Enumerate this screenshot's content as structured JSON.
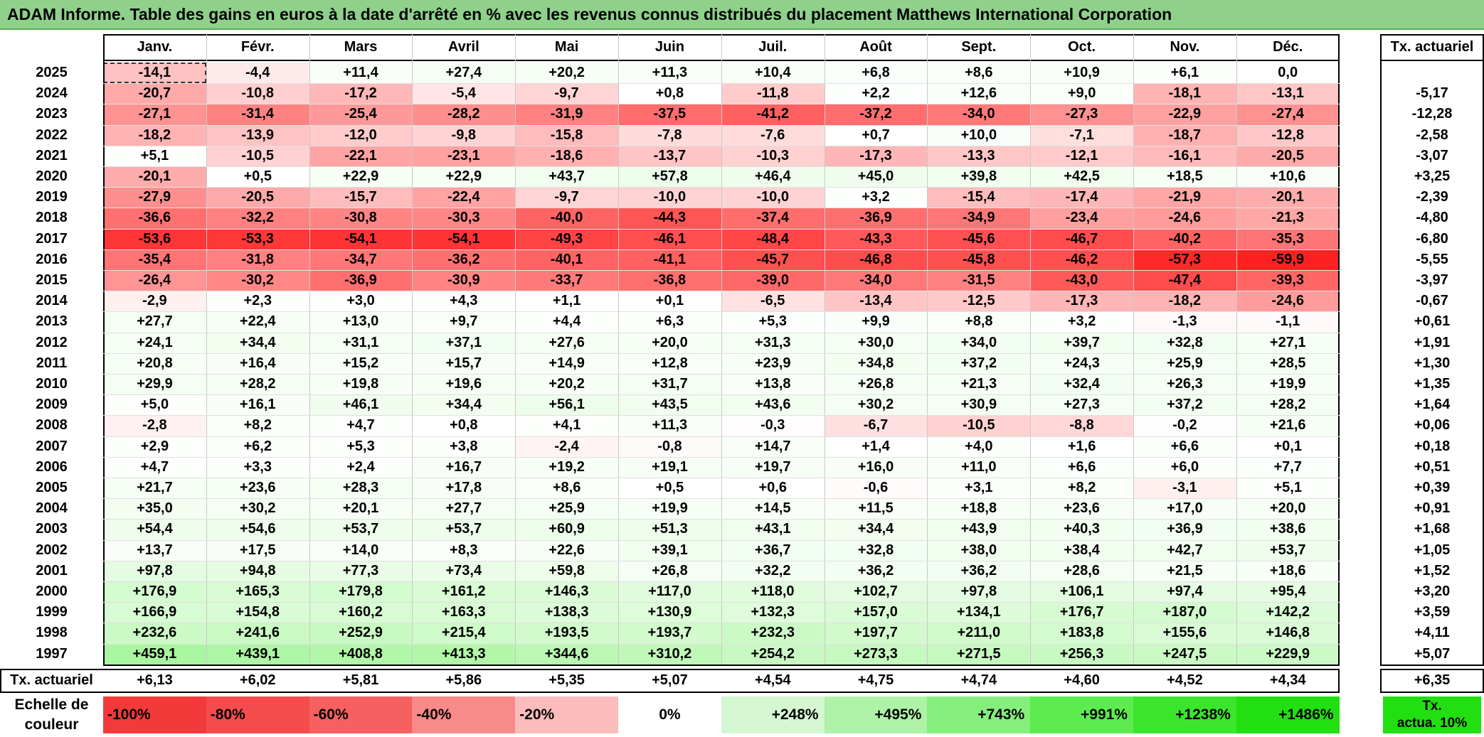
{
  "title": "ADAM Informe. Table des gains en euros à la date d'arrêté en % avec les revenus connus distribués du placement Matthews International Corporation",
  "months": [
    "Janv.",
    "Févr.",
    "Mars",
    "Avril",
    "Mai",
    "Juin",
    "Juil.",
    "Août",
    "Sept.",
    "Oct.",
    "Nov.",
    "Déc."
  ],
  "rate_header": "Tx. actuariel",
  "rows": [
    {
      "year": "2025",
      "values": [
        "-14,1",
        "-4,4",
        "+11,4",
        "+27,4",
        "+20,2",
        "+11,3",
        "+10,4",
        "+6,8",
        "+8,6",
        "+10,9",
        "+6,1",
        "0,0"
      ],
      "rate": ""
    },
    {
      "year": "2024",
      "values": [
        "-20,7",
        "-10,8",
        "-17,2",
        "-5,4",
        "-9,7",
        "+0,8",
        "-11,8",
        "+2,2",
        "+12,6",
        "+9,0",
        "-18,1",
        "-13,1"
      ],
      "rate": "-5,17"
    },
    {
      "year": "2023",
      "values": [
        "-27,1",
        "-31,4",
        "-25,4",
        "-28,2",
        "-31,9",
        "-37,5",
        "-41,2",
        "-37,2",
        "-34,0",
        "-27,3",
        "-22,9",
        "-27,4"
      ],
      "rate": "-12,28"
    },
    {
      "year": "2022",
      "values": [
        "-18,2",
        "-13,9",
        "-12,0",
        "-9,8",
        "-15,8",
        "-7,8",
        "-7,6",
        "+0,7",
        "+10,0",
        "-7,1",
        "-18,7",
        "-12,8"
      ],
      "rate": "-2,58"
    },
    {
      "year": "2021",
      "values": [
        "+5,1",
        "-10,5",
        "-22,1",
        "-23,1",
        "-18,6",
        "-13,7",
        "-10,3",
        "-17,3",
        "-13,3",
        "-12,1",
        "-16,1",
        "-20,5"
      ],
      "rate": "-3,07"
    },
    {
      "year": "2020",
      "values": [
        "-20,1",
        "+0,5",
        "+22,9",
        "+22,9",
        "+43,7",
        "+57,8",
        "+46,4",
        "+45,0",
        "+39,8",
        "+42,5",
        "+18,5",
        "+10,6"
      ],
      "rate": "+3,25"
    },
    {
      "year": "2019",
      "values": [
        "-27,9",
        "-20,5",
        "-15,7",
        "-22,4",
        "-9,7",
        "-10,0",
        "-10,0",
        "+3,2",
        "-15,4",
        "-17,4",
        "-21,9",
        "-20,1"
      ],
      "rate": "-2,39"
    },
    {
      "year": "2018",
      "values": [
        "-36,6",
        "-32,2",
        "-30,8",
        "-30,3",
        "-40,0",
        "-44,3",
        "-37,4",
        "-36,9",
        "-34,9",
        "-23,4",
        "-24,6",
        "-21,3"
      ],
      "rate": "-4,80"
    },
    {
      "year": "2017",
      "values": [
        "-53,6",
        "-53,3",
        "-54,1",
        "-54,1",
        "-49,3",
        "-46,1",
        "-48,4",
        "-43,3",
        "-45,6",
        "-46,7",
        "-40,2",
        "-35,3"
      ],
      "rate": "-6,80"
    },
    {
      "year": "2016",
      "values": [
        "-35,4",
        "-31,8",
        "-34,7",
        "-36,2",
        "-40,1",
        "-41,1",
        "-45,7",
        "-46,8",
        "-45,8",
        "-46,2",
        "-57,3",
        "-59,9"
      ],
      "rate": "-5,55"
    },
    {
      "year": "2015",
      "values": [
        "-26,4",
        "-30,2",
        "-36,9",
        "-30,9",
        "-33,7",
        "-36,8",
        "-39,0",
        "-34,0",
        "-31,5",
        "-43,0",
        "-47,4",
        "-39,3"
      ],
      "rate": "-3,97"
    },
    {
      "year": "2014",
      "values": [
        "-2,9",
        "+2,3",
        "+3,0",
        "+4,3",
        "+1,1",
        "+0,1",
        "-6,5",
        "-13,4",
        "-12,5",
        "-17,3",
        "-18,2",
        "-24,6"
      ],
      "rate": "-0,67"
    },
    {
      "year": "2013",
      "values": [
        "+27,7",
        "+22,4",
        "+13,0",
        "+9,7",
        "+4,4",
        "+6,3",
        "+5,3",
        "+9,9",
        "+8,8",
        "+3,2",
        "-1,3",
        "-1,1"
      ],
      "rate": "+0,61"
    },
    {
      "year": "2012",
      "values": [
        "+24,1",
        "+34,4",
        "+31,1",
        "+37,1",
        "+27,6",
        "+20,0",
        "+31,3",
        "+30,0",
        "+34,0",
        "+39,7",
        "+32,8",
        "+27,1"
      ],
      "rate": "+1,91"
    },
    {
      "year": "2011",
      "values": [
        "+20,8",
        "+16,4",
        "+15,2",
        "+15,7",
        "+14,9",
        "+12,8",
        "+23,9",
        "+34,8",
        "+37,2",
        "+24,3",
        "+25,9",
        "+28,5"
      ],
      "rate": "+1,30"
    },
    {
      "year": "2010",
      "values": [
        "+29,9",
        "+28,2",
        "+19,8",
        "+19,6",
        "+20,2",
        "+31,7",
        "+13,8",
        "+26,8",
        "+21,3",
        "+32,4",
        "+26,3",
        "+19,9"
      ],
      "rate": "+1,35"
    },
    {
      "year": "2009",
      "values": [
        "+5,0",
        "+16,1",
        "+46,1",
        "+34,4",
        "+56,1",
        "+43,5",
        "+43,6",
        "+30,2",
        "+30,9",
        "+27,3",
        "+37,2",
        "+28,2"
      ],
      "rate": "+1,64"
    },
    {
      "year": "2008",
      "values": [
        "-2,8",
        "+8,2",
        "+4,7",
        "+0,8",
        "+4,1",
        "+11,3",
        "-0,3",
        "-6,7",
        "-10,5",
        "-8,8",
        "-0,2",
        "+21,6"
      ],
      "rate": "+0,06"
    },
    {
      "year": "2007",
      "values": [
        "+2,9",
        "+6,2",
        "+5,3",
        "+3,8",
        "-2,4",
        "-0,8",
        "+14,7",
        "+1,4",
        "+4,0",
        "+1,6",
        "+6,6",
        "+0,1"
      ],
      "rate": "+0,18"
    },
    {
      "year": "2006",
      "values": [
        "+4,7",
        "+3,3",
        "+2,4",
        "+16,7",
        "+19,2",
        "+19,1",
        "+19,7",
        "+16,0",
        "+11,0",
        "+6,6",
        "+6,0",
        "+7,7"
      ],
      "rate": "+0,51"
    },
    {
      "year": "2005",
      "values": [
        "+21,7",
        "+23,6",
        "+28,3",
        "+17,8",
        "+8,6",
        "+0,5",
        "+0,6",
        "-0,6",
        "+3,1",
        "+8,2",
        "-3,1",
        "+5,1"
      ],
      "rate": "+0,39"
    },
    {
      "year": "2004",
      "values": [
        "+35,0",
        "+30,2",
        "+20,1",
        "+27,7",
        "+25,9",
        "+19,9",
        "+14,5",
        "+11,5",
        "+18,8",
        "+23,6",
        "+17,0",
        "+20,0"
      ],
      "rate": "+0,91"
    },
    {
      "year": "2003",
      "values": [
        "+54,4",
        "+54,6",
        "+53,7",
        "+53,7",
        "+60,9",
        "+51,3",
        "+43,1",
        "+34,4",
        "+43,9",
        "+40,3",
        "+36,9",
        "+38,6"
      ],
      "rate": "+1,68"
    },
    {
      "year": "2002",
      "values": [
        "+13,7",
        "+17,5",
        "+14,0",
        "+8,3",
        "+22,6",
        "+39,1",
        "+36,7",
        "+32,8",
        "+38,0",
        "+38,4",
        "+42,7",
        "+53,7"
      ],
      "rate": "+1,05"
    },
    {
      "year": "2001",
      "values": [
        "+97,8",
        "+94,8",
        "+77,3",
        "+73,4",
        "+59,8",
        "+26,8",
        "+32,2",
        "+36,2",
        "+36,2",
        "+28,6",
        "+21,5",
        "+18,6"
      ],
      "rate": "+1,52"
    },
    {
      "year": "2000",
      "values": [
        "+176,9",
        "+165,3",
        "+179,8",
        "+161,2",
        "+146,3",
        "+117,0",
        "+118,0",
        "+102,7",
        "+97,8",
        "+106,1",
        "+97,4",
        "+95,4"
      ],
      "rate": "+3,20"
    },
    {
      "year": "1999",
      "values": [
        "+166,9",
        "+154,8",
        "+160,2",
        "+163,3",
        "+138,3",
        "+130,9",
        "+132,3",
        "+157,0",
        "+134,1",
        "+176,7",
        "+187,0",
        "+142,2"
      ],
      "rate": "+3,59"
    },
    {
      "year": "1998",
      "values": [
        "+232,6",
        "+241,6",
        "+252,9",
        "+215,4",
        "+193,5",
        "+193,7",
        "+232,3",
        "+197,7",
        "+211,0",
        "+183,8",
        "+155,6",
        "+146,8"
      ],
      "rate": "+4,11"
    },
    {
      "year": "1997",
      "values": [
        "+459,1",
        "+439,1",
        "+408,8",
        "+413,3",
        "+344,6",
        "+310,2",
        "+254,2",
        "+273,3",
        "+271,5",
        "+256,3",
        "+247,5",
        "+229,9"
      ],
      "rate": "+5,07"
    }
  ],
  "footer": {
    "label": "Tx. actuariel",
    "values": [
      "+6,13",
      "+6,02",
      "+5,81",
      "+5,86",
      "+5,35",
      "+5,07",
      "+4,54",
      "+4,75",
      "+4,74",
      "+4,60",
      "+4,52",
      "+4,34"
    ],
    "rate": "+6,35"
  },
  "scale": {
    "label_line1": "Echelle de",
    "label_line2": "couleur",
    "steps": [
      {
        "label": "-100%",
        "color": "#f23a3a"
      },
      {
        "label": "-80%",
        "color": "#f44c4c"
      },
      {
        "label": "-60%",
        "color": "#f66060"
      },
      {
        "label": "-40%",
        "color": "#f98a8a"
      },
      {
        "label": "-20%",
        "color": "#fcbcbc"
      },
      {
        "label": "0%",
        "color": "#ffffff"
      },
      {
        "label": "+248%",
        "color": "#d4f7d1"
      },
      {
        "label": "+495%",
        "color": "#aef2a8"
      },
      {
        "label": "+743%",
        "color": "#85ef7c"
      },
      {
        "label": "+991%",
        "color": "#5cec4f"
      },
      {
        "label": "+1238%",
        "color": "#3be52c"
      },
      {
        "label": "+1486%",
        "color": "#21df10"
      }
    ],
    "rate_box_line1": "Tx.",
    "rate_box_line2": "actua. 10%",
    "rate_box_color": "#21df10"
  },
  "colors": {
    "title_bg": "#8fd18b",
    "negative_max": "#ff2020",
    "positive_max": "#21df10"
  }
}
